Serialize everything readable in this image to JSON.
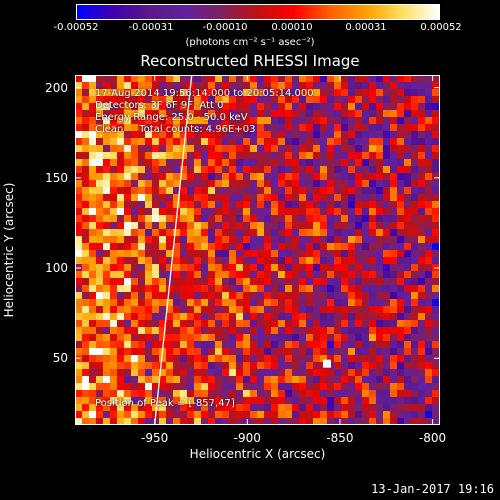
{
  "colorbar": {
    "ticks": [
      "-0.00052",
      "-0.00031",
      "-0.00010",
      "0.00010",
      "0.00031",
      "0.00052"
    ],
    "units": "(photons cm⁻² s⁻¹ asec⁻²)"
  },
  "title": "Reconstructed RHESSI Image",
  "info": {
    "line1": "17-Aug-2014 19:56:14.000 to 20:05:14.000",
    "line2": "Detectors: 3F 6F 9F, Att 0",
    "line3": "Energy Range: 25.0 - 50.0 keV",
    "line4": "Clean     Total counts: 4.96E+03",
    "peak": "Position of Peak = [-857,47]"
  },
  "footer_date": "13-Jan-2017 19:16",
  "chart_data": {
    "type": "heatmap",
    "title": "Reconstructed RHESSI Image",
    "xlabel": "Heliocentric X (arcsec)",
    "ylabel": "Heliocentric Y (arcsec)",
    "xlim": [
      -993,
      -796
    ],
    "ylim": [
      13,
      207
    ],
    "xticks": [
      -950,
      -900,
      -850,
      -800
    ],
    "xtick_labels": [
      "-950",
      "-900",
      "-850",
      "-800"
    ],
    "yticks": [
      50,
      100,
      150,
      200
    ],
    "ytick_labels": [
      "50",
      "100",
      "150",
      "200"
    ],
    "zlim": [
      -0.00052,
      0.00052
    ],
    "colormap": [
      "#0000ff",
      "#4000b0",
      "#5a1888",
      "#6020a0",
      "#802060",
      "#c01010",
      "#ff0000",
      "#ff6000",
      "#ffa000",
      "#ffe060",
      "#ffffff"
    ],
    "limb_line": [
      [
        -950,
        13
      ],
      [
        -930,
        207
      ]
    ],
    "peak_position": [
      -857,
      47
    ]
  }
}
